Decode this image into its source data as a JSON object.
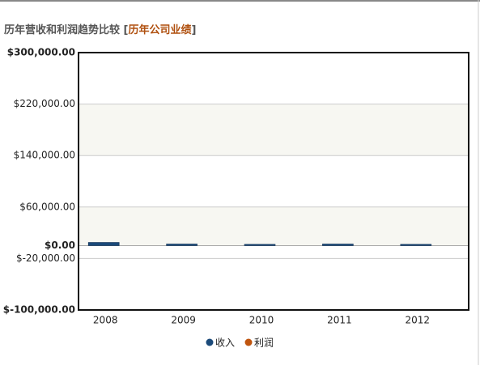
{
  "chart_data": {
    "type": "bar",
    "title": "历年营收和利润趋势比较",
    "subtitle": "历年公司业绩",
    "categories": [
      "2008",
      "2009",
      "2010",
      "2011",
      "2012"
    ],
    "series": [
      {
        "name": "收入",
        "color": "#1b4a7a",
        "values": [
          5000,
          2500,
          2000,
          2500,
          2000
        ]
      },
      {
        "name": "利润",
        "color": "#c0550f",
        "values": [
          0,
          0,
          0,
          0,
          0
        ]
      }
    ],
    "ylim": [
      -100000,
      300000
    ],
    "yticks": [
      {
        "value": -100000,
        "label": "$-100,000.00"
      },
      {
        "value": -20000,
        "label": "$-20,000.00"
      },
      {
        "value": 0,
        "label": "$0.00"
      },
      {
        "value": 60000,
        "label": "$60,000.00"
      },
      {
        "value": 140000,
        "label": "$140,000.00"
      },
      {
        "value": 220000,
        "label": "$220,000.00"
      },
      {
        "value": 300000,
        "label": "$300,000.00"
      }
    ],
    "grid": true
  }
}
